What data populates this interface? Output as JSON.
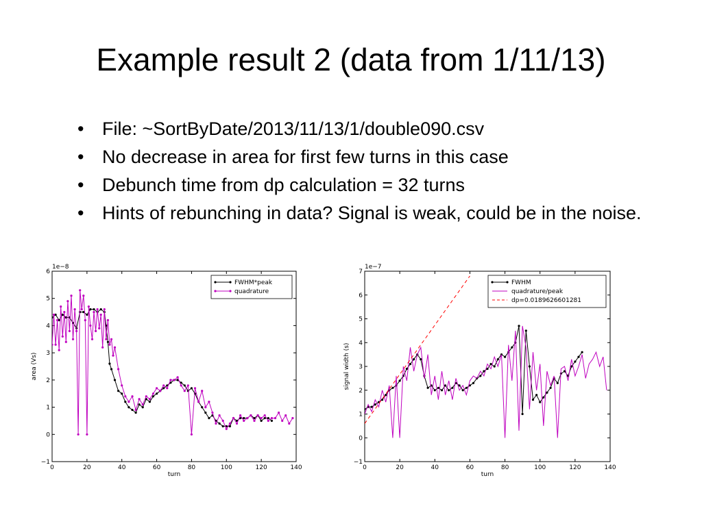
{
  "slide": {
    "title": "Example result 2 (data from 1/11/13)",
    "bullets": [
      "File: ~SortByDate/2013/11/13/1/double090.csv",
      "No decrease in area for first few turns in this case",
      "Debunch time from dp calculation = 32 turns",
      "Hints of rebunching in data? Signal is weak, could be in the noise."
    ],
    "bullet_char": "•"
  },
  "chart_data": [
    {
      "type": "line",
      "xlabel": "turn",
      "ylabel": "area (Vs)",
      "scale_label": "1e−8",
      "xlim": [
        0,
        140
      ],
      "ylim": [
        -1,
        6
      ],
      "xticks": [
        "0",
        "20",
        "40",
        "60",
        "80",
        "100",
        "120",
        "140"
      ],
      "yticks": [
        "−1",
        "0",
        "1",
        "2",
        "3",
        "4",
        "5",
        "6"
      ],
      "legend_position": "top-right",
      "series": [
        {
          "name": "FWHM*peak",
          "color": "#000000",
          "markers": true,
          "x": [
            0,
            2,
            4,
            6,
            8,
            10,
            12,
            14,
            16,
            18,
            20,
            22,
            24,
            26,
            28,
            30,
            31,
            32,
            33,
            34,
            36,
            38,
            40,
            42,
            44,
            46,
            48,
            50,
            52,
            54,
            56,
            58,
            60,
            62,
            64,
            66,
            68,
            70,
            72,
            74,
            76,
            78,
            80,
            82,
            84,
            86,
            88,
            90,
            92,
            94,
            96,
            98,
            100,
            102,
            104,
            106,
            108,
            110,
            112,
            114,
            116,
            118,
            120,
            122,
            124,
            126
          ],
          "values": [
            4.3,
            4.4,
            4.2,
            4.4,
            4.3,
            4.3,
            4.1,
            3.9,
            4.5,
            4.5,
            4.4,
            4.6,
            4.6,
            4.5,
            4.6,
            4.5,
            4.0,
            3.4,
            2.6,
            2.4,
            2.0,
            1.6,
            1.5,
            1.2,
            1.0,
            0.9,
            0.8,
            1.1,
            1.0,
            1.3,
            1.2,
            1.4,
            1.5,
            1.6,
            1.7,
            1.8,
            1.9,
            2.0,
            2.0,
            1.9,
            1.8,
            1.6,
            1.7,
            1.5,
            1.2,
            1.0,
            0.8,
            0.6,
            0.7,
            0.5,
            0.4,
            0.3,
            0.3,
            0.3,
            0.6,
            0.5,
            0.6,
            0.6,
            0.6,
            0.7,
            0.6,
            0.7,
            0.5,
            0.6,
            0.6,
            0.5
          ]
        },
        {
          "name": "quadrature",
          "color": "#bf00bf",
          "markers": true,
          "x": [
            0,
            1,
            2,
            3,
            4,
            5,
            6,
            7,
            8,
            9,
            10,
            11,
            12,
            13,
            14,
            15,
            16,
            17,
            18,
            19,
            20,
            21,
            22,
            23,
            24,
            25,
            26,
            27,
            28,
            29,
            30,
            31,
            32,
            33,
            34,
            35,
            36,
            38,
            40,
            42,
            44,
            46,
            48,
            50,
            52,
            54,
            56,
            58,
            60,
            62,
            64,
            66,
            68,
            70,
            72,
            74,
            76,
            78,
            80,
            82,
            84,
            86,
            88,
            90,
            92,
            94,
            96,
            98,
            100,
            102,
            104,
            106,
            108,
            110,
            112,
            114,
            116,
            118,
            120,
            122,
            124,
            126,
            128,
            130,
            132,
            134,
            136,
            138
          ],
          "values": [
            3.3,
            4.4,
            3.3,
            4.2,
            3.1,
            4.7,
            3.6,
            4.5,
            3.4,
            4.9,
            3.8,
            5.1,
            3.5,
            4.6,
            3.8,
            0.0,
            5.3,
            4.6,
            5.1,
            4.2,
            0.0,
            4.7,
            4.0,
            3.5,
            4.5,
            3.8,
            4.6,
            3.9,
            4.4,
            3.2,
            4.6,
            3.5,
            4.2,
            3.3,
            3.5,
            2.9,
            3.2,
            2.4,
            1.8,
            1.4,
            1.2,
            1.4,
            0.9,
            1.3,
            1.1,
            1.4,
            1.3,
            1.5,
            1.7,
            1.6,
            1.8,
            1.7,
            2.0,
            2.0,
            2.1,
            1.8,
            1.6,
            1.8,
            0.0,
            1.7,
            1.2,
            1.6,
            1.0,
            1.2,
            0.8,
            0.4,
            0.7,
            0.5,
            0.2,
            0.4,
            0.6,
            0.4,
            0.7,
            0.5,
            0.6,
            0.7,
            0.5,
            0.7,
            0.6,
            0.7,
            0.5,
            0.6,
            0.6,
            0.8,
            0.5,
            0.7,
            0.4,
            0.6
          ]
        }
      ]
    },
    {
      "type": "line",
      "xlabel": "turn",
      "ylabel": "signal width (s)",
      "scale_label": "1e−7",
      "xlim": [
        0,
        140
      ],
      "ylim": [
        -1,
        7
      ],
      "xticks": [
        "0",
        "20",
        "40",
        "60",
        "80",
        "100",
        "120",
        "140"
      ],
      "yticks": [
        "−1",
        "0",
        "1",
        "2",
        "3",
        "4",
        "5",
        "6",
        "7"
      ],
      "legend_position": "top-right",
      "series": [
        {
          "name": "FWHM",
          "color": "#000000",
          "markers": true,
          "x": [
            0,
            2,
            4,
            6,
            8,
            10,
            12,
            14,
            16,
            18,
            20,
            22,
            24,
            26,
            28,
            30,
            32,
            34,
            36,
            38,
            40,
            42,
            44,
            46,
            48,
            50,
            52,
            54,
            56,
            58,
            60,
            62,
            64,
            66,
            68,
            70,
            72,
            74,
            76,
            78,
            80,
            82,
            84,
            86,
            88,
            90,
            92,
            94,
            96,
            98,
            100,
            102,
            104,
            106,
            108,
            110,
            112,
            114,
            116,
            118,
            120,
            122,
            124
          ],
          "values": [
            1.2,
            1.3,
            1.3,
            1.4,
            1.5,
            1.6,
            1.8,
            2.0,
            2.1,
            2.2,
            2.4,
            2.6,
            2.9,
            3.1,
            3.3,
            3.5,
            3.3,
            2.6,
            2.1,
            2.2,
            2.0,
            2.1,
            2.0,
            2.2,
            2.0,
            2.1,
            2.3,
            2.2,
            2.0,
            2.1,
            2.2,
            2.3,
            2.5,
            2.6,
            2.8,
            2.9,
            3.1,
            3.0,
            3.3,
            3.5,
            3.4,
            3.6,
            3.8,
            4.0,
            4.7,
            1.0,
            4.5,
            3.0,
            1.6,
            1.8,
            1.5,
            1.7,
            1.9,
            2.1,
            2.5,
            2.3,
            2.7,
            2.8,
            2.6,
            3.0,
            3.2,
            3.4,
            3.6
          ]
        },
        {
          "name": "quadrature/peak",
          "color": "#bf00bf",
          "markers": false,
          "x": [
            0,
            2,
            4,
            6,
            8,
            10,
            12,
            14,
            16,
            18,
            20,
            22,
            24,
            26,
            28,
            30,
            32,
            34,
            36,
            38,
            40,
            42,
            44,
            46,
            48,
            50,
            52,
            54,
            56,
            58,
            60,
            62,
            64,
            66,
            68,
            70,
            72,
            74,
            76,
            78,
            80,
            82,
            84,
            86,
            88,
            90,
            92,
            94,
            96,
            98,
            100,
            102,
            104,
            106,
            108,
            110,
            112,
            114,
            116,
            118,
            120,
            122,
            124,
            126,
            128,
            130,
            132,
            134,
            136,
            138
          ],
          "values": [
            1.0,
            1.4,
            1.1,
            1.6,
            1.3,
            2.0,
            1.5,
            2.2,
            0.0,
            2.6,
            0.0,
            3.0,
            2.4,
            3.8,
            2.8,
            3.5,
            3.8,
            2.5,
            3.5,
            1.8,
            2.6,
            1.6,
            2.8,
            1.8,
            2.4,
            1.6,
            2.5,
            2.0,
            2.2,
            1.8,
            2.4,
            2.6,
            2.5,
            2.8,
            2.6,
            3.1,
            2.9,
            3.4,
            3.0,
            3.5,
            0.0,
            3.9,
            2.4,
            4.5,
            0.3,
            4.7,
            3.8,
            1.2,
            3.6,
            2.0,
            3.1,
            0.5,
            2.8,
            2.2,
            2.6,
            0.0,
            2.9,
            3.0,
            2.4,
            3.3,
            2.6,
            3.0,
            3.5,
            2.5,
            3.1,
            3.3,
            3.6,
            3.0,
            3.4,
            2.0
          ]
        },
        {
          "name": "dp=0.0189626601281",
          "color": "#ff0000",
          "dashed": true,
          "markers": false,
          "x": [
            0,
            60
          ],
          "values": [
            0.6,
            6.8
          ]
        }
      ]
    }
  ]
}
